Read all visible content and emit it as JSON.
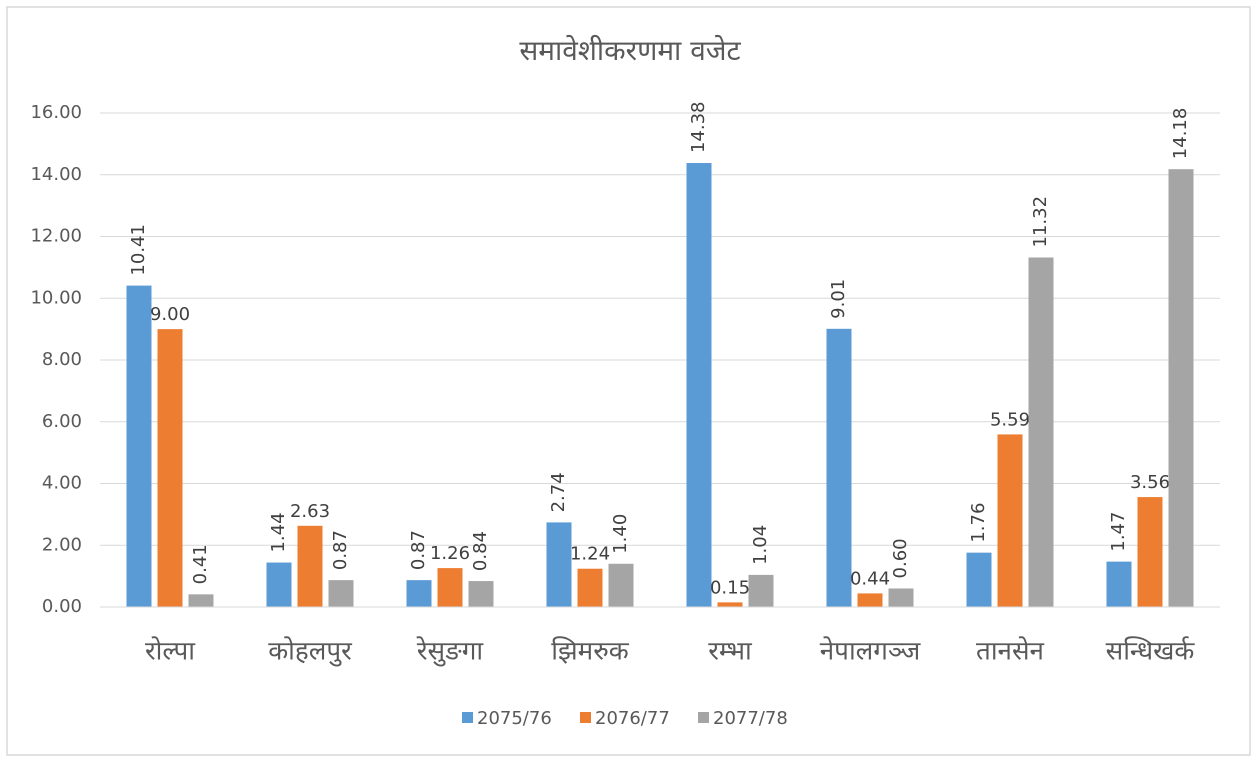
{
  "chart_data": {
    "type": "bar",
    "title": "समावेशीकरणमा वजेट",
    "categories": [
      "रोल्पा",
      "कोहलपुर",
      "रेसुङगा",
      "झिमरुक",
      "रम्भा",
      "नेपालगञ्ज",
      "तानसेन",
      "सन्धिखर्क"
    ],
    "series": [
      {
        "name": "2075/76",
        "color": "#5b9bd5",
        "values": [
          10.41,
          1.44,
          0.87,
          2.74,
          14.38,
          9.01,
          1.76,
          1.47
        ],
        "value_labels": [
          "10.41",
          "1.44",
          "0.87",
          "2.74",
          "14.38",
          "9.01",
          "1.76",
          "1.47"
        ]
      },
      {
        "name": "2076/77",
        "color": "#ed7d31",
        "values": [
          9.0,
          2.63,
          1.26,
          1.24,
          0.15,
          0.44,
          5.59,
          3.56
        ],
        "value_labels": [
          "9.00",
          "2.63",
          "1.26",
          "1.24",
          "0.15",
          "0.44",
          "5.59",
          "3.56"
        ]
      },
      {
        "name": "2077/78",
        "color": "#a5a5a5",
        "values": [
          0.41,
          0.87,
          0.84,
          1.4,
          1.04,
          0.6,
          11.32,
          14.18
        ],
        "value_labels": [
          "0.41",
          "0.87",
          "0.84",
          "1.40",
          "1.04",
          "0.60",
          "11.32",
          "14.18"
        ]
      }
    ],
    "ylim": [
      0,
      16
    ],
    "yticks": [
      {
        "value": 0,
        "label": "0.00"
      },
      {
        "value": 2,
        "label": "2.00"
      },
      {
        "value": 4,
        "label": "4.00"
      },
      {
        "value": 6,
        "label": "6.00"
      },
      {
        "value": 8,
        "label": "8.00"
      },
      {
        "value": 10,
        "label": "10.00"
      },
      {
        "value": 12,
        "label": "12.00"
      },
      {
        "value": 14,
        "label": "14.00"
      },
      {
        "value": 16,
        "label": "16.00"
      }
    ],
    "grid": true,
    "legend": "bottom"
  }
}
